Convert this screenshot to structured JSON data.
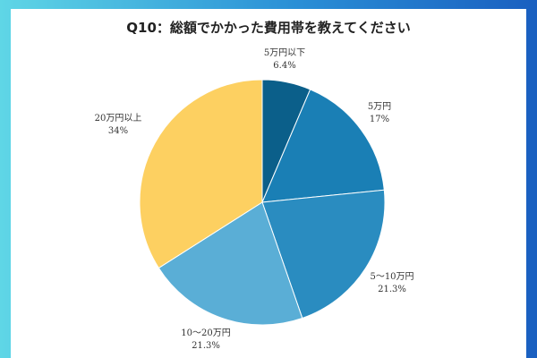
{
  "chart_data": {
    "type": "pie",
    "title": "Q10：総額でかかった費用帯を教えてください",
    "slices": [
      {
        "label": "5万円以下",
        "value": 6.4,
        "value_label": "6.4%",
        "color": "#0b5f8a"
      },
      {
        "label": "5万円",
        "value": 17,
        "value_label": "17%",
        "color": "#1a7fb5"
      },
      {
        "label": "5〜10万円",
        "value": 21.3,
        "value_label": "21.3%",
        "color": "#2a8cc0"
      },
      {
        "label": "10〜20万円",
        "value": 21.3,
        "value_label": "21.3%",
        "color": "#5aaed6"
      },
      {
        "label": "20万円以上",
        "value": 34,
        "value_label": "34%",
        "color": "#fdd061"
      }
    ]
  }
}
